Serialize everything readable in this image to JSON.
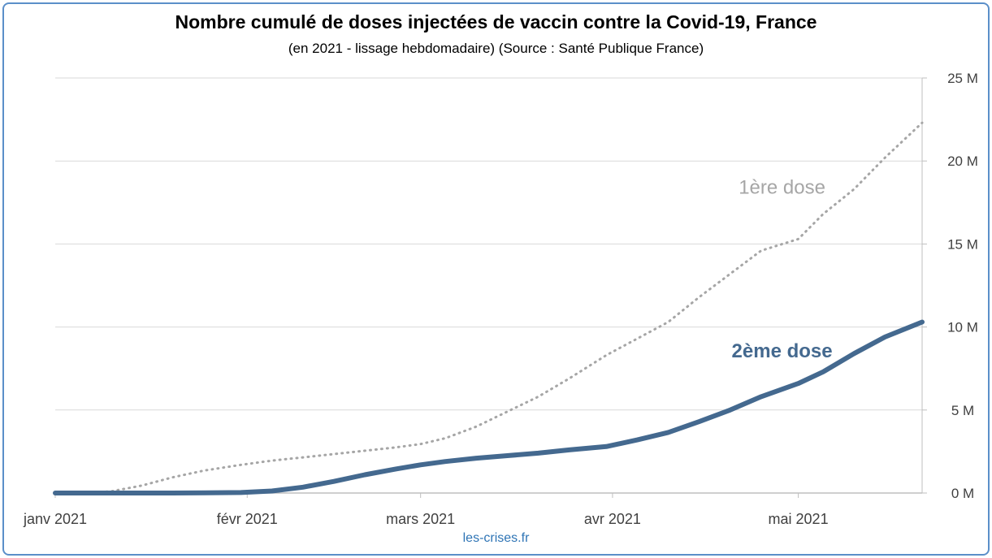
{
  "chart_data": {
    "type": "line",
    "title": "Nombre cumulé de doses injectées de vaccin contre la Covid-19, France",
    "subtitle": "(en 2021 - lissage hebdomadaire) (Source : Santé Publique France)",
    "source_label": "les-crises.fr",
    "xlabel": "",
    "ylabel": "",
    "x_ticks": [
      "janv 2021",
      "févr 2021",
      "mars 2021",
      "avr 2021",
      "mai 2021"
    ],
    "y_ticks": [
      "0 M",
      "5 M",
      "10 M",
      "15 M",
      "20 M",
      "25 M"
    ],
    "ylim": [
      0,
      25
    ],
    "xlim": [
      "2021-01-01",
      "2021-05-21"
    ],
    "grid": true,
    "y_axis_side": "right",
    "series": [
      {
        "name": "1ère dose",
        "style": "dotted",
        "color": "#a6a6a6",
        "points": [
          [
            "2021-01-01",
            0
          ],
          [
            "2021-01-06",
            0.0
          ],
          [
            "2021-01-10",
            0.1
          ],
          [
            "2021-01-15",
            0.45
          ],
          [
            "2021-01-20",
            0.95
          ],
          [
            "2021-01-25",
            1.35
          ],
          [
            "2021-01-31",
            1.7
          ],
          [
            "2021-02-05",
            1.95
          ],
          [
            "2021-02-10",
            2.15
          ],
          [
            "2021-02-15",
            2.35
          ],
          [
            "2021-02-20",
            2.55
          ],
          [
            "2021-02-25",
            2.75
          ],
          [
            "2021-03-01",
            2.95
          ],
          [
            "2021-03-05",
            3.3
          ],
          [
            "2021-03-10",
            4.0
          ],
          [
            "2021-03-15",
            4.9
          ],
          [
            "2021-03-20",
            5.8
          ],
          [
            "2021-03-25",
            6.9
          ],
          [
            "2021-03-31",
            8.3
          ],
          [
            "2021-04-05",
            9.3
          ],
          [
            "2021-04-10",
            10.3
          ],
          [
            "2021-04-15",
            11.8
          ],
          [
            "2021-04-20",
            13.2
          ],
          [
            "2021-04-25",
            14.6
          ],
          [
            "2021-05-01",
            15.3
          ],
          [
            "2021-05-05",
            16.8
          ],
          [
            "2021-05-10",
            18.3
          ],
          [
            "2021-05-15",
            20.2
          ],
          [
            "2021-05-21",
            22.3
          ]
        ]
      },
      {
        "name": "2ème dose",
        "style": "solid",
        "color": "#44698f",
        "points": [
          [
            "2021-01-01",
            0
          ],
          [
            "2021-01-20",
            0.0
          ],
          [
            "2021-01-31",
            0.03
          ],
          [
            "2021-02-05",
            0.12
          ],
          [
            "2021-02-10",
            0.35
          ],
          [
            "2021-02-15",
            0.7
          ],
          [
            "2021-02-20",
            1.1
          ],
          [
            "2021-02-25",
            1.45
          ],
          [
            "2021-03-01",
            1.7
          ],
          [
            "2021-03-05",
            1.9
          ],
          [
            "2021-03-10",
            2.1
          ],
          [
            "2021-03-15",
            2.25
          ],
          [
            "2021-03-20",
            2.4
          ],
          [
            "2021-03-25",
            2.6
          ],
          [
            "2021-03-31",
            2.8
          ],
          [
            "2021-04-05",
            3.2
          ],
          [
            "2021-04-10",
            3.65
          ],
          [
            "2021-04-15",
            4.3
          ],
          [
            "2021-04-20",
            5.0
          ],
          [
            "2021-04-25",
            5.8
          ],
          [
            "2021-05-01",
            6.6
          ],
          [
            "2021-05-05",
            7.3
          ],
          [
            "2021-05-10",
            8.4
          ],
          [
            "2021-05-15",
            9.4
          ],
          [
            "2021-05-21",
            10.3
          ]
        ]
      }
    ]
  }
}
